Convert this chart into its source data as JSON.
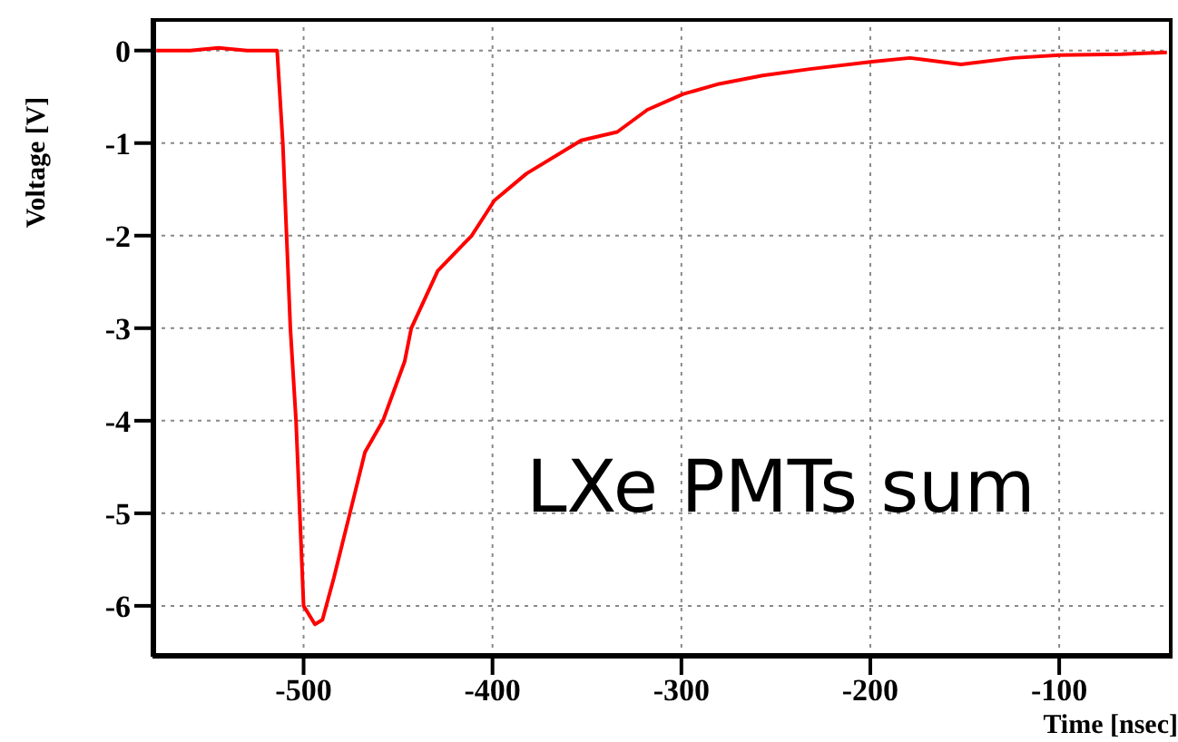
{
  "chart_data": {
    "type": "line",
    "xlabel": "Time [nsec]",
    "ylabel": "Voltage [V]",
    "annotations": [
      "LXe PMTs sum"
    ],
    "x": [
      -578,
      -560,
      -545,
      -530,
      -514,
      -511,
      -507,
      -504,
      -502,
      -500,
      -494,
      -490,
      -484,
      -475.5,
      -467.5,
      -458,
      -446.5,
      -443,
      -429,
      -411,
      -399,
      -382,
      -353,
      -334,
      -318,
      -299,
      -280,
      -257,
      -232,
      -199,
      -179,
      -152,
      -124,
      -100,
      -67,
      -43
    ],
    "series": [
      {
        "color": "#ff0000",
        "values": [
          0,
          0,
          0.03,
          0,
          0,
          -1,
          -3,
          -4,
          -5,
          -6,
          -6.2,
          -6.15,
          -5.7,
          -5,
          -4.34,
          -4,
          -3.36,
          -3,
          -2.38,
          -2,
          -1.62,
          -1.33,
          -0.97,
          -0.88,
          -0.64,
          -0.47,
          -0.36,
          -0.27,
          -0.2,
          -0.12,
          -0.08,
          -0.15,
          -0.08,
          -0.05,
          -0.04,
          -0.02
        ]
      }
    ],
    "xlim": [
      -580,
      -40
    ],
    "xticks": [
      -500,
      -400,
      -300,
      -200,
      -100
    ],
    "ylim": [
      -6.55,
      0.35
    ],
    "yticks": [
      -6,
      -5,
      -4,
      -3,
      -2,
      -1,
      0
    ],
    "grid": true,
    "marker": "none",
    "line_style": "solid"
  }
}
